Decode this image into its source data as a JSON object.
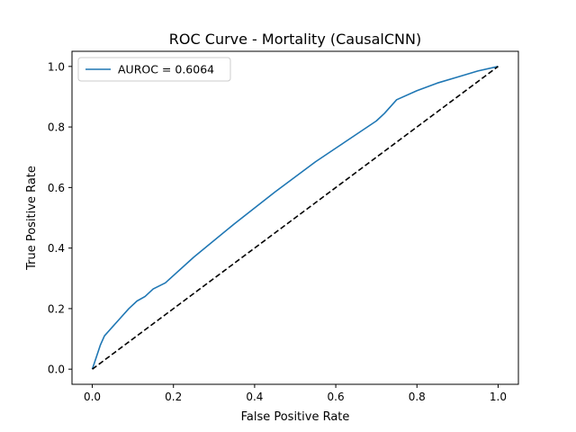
{
  "chart_data": {
    "type": "line",
    "title": "ROC Curve - Mortality (CausalCNN)",
    "xlabel": "False Positive Rate",
    "ylabel": "True Positive Rate",
    "xlim": [
      -0.05,
      1.05
    ],
    "ylim": [
      -0.05,
      1.05
    ],
    "x_ticks": [
      0.0,
      0.2,
      0.4,
      0.6,
      0.8,
      1.0
    ],
    "x_tick_labels": [
      "0.0",
      "0.2",
      "0.4",
      "0.6",
      "0.8",
      "1.0"
    ],
    "y_ticks": [
      0.0,
      0.2,
      0.4,
      0.6,
      0.8,
      1.0
    ],
    "y_tick_labels": [
      "0.0",
      "0.2",
      "0.4",
      "0.6",
      "0.8",
      "1.0"
    ],
    "grid": false,
    "legend_position": "top-left",
    "series": [
      {
        "name": "AUROC = 0.6064",
        "color": "#1f77b4",
        "style": "solid",
        "x": [
          0.0,
          0.005,
          0.01,
          0.015,
          0.02,
          0.03,
          0.04,
          0.05,
          0.07,
          0.09,
          0.11,
          0.13,
          0.15,
          0.18,
          0.25,
          0.35,
          0.45,
          0.55,
          0.6,
          0.65,
          0.7,
          0.72,
          0.75,
          0.8,
          0.85,
          0.9,
          0.95,
          1.0
        ],
        "y": [
          0.0,
          0.02,
          0.04,
          0.06,
          0.08,
          0.11,
          0.125,
          0.14,
          0.17,
          0.2,
          0.225,
          0.24,
          0.265,
          0.285,
          0.37,
          0.48,
          0.585,
          0.685,
          0.73,
          0.775,
          0.82,
          0.845,
          0.89,
          0.92,
          0.945,
          0.965,
          0.985,
          1.0
        ]
      },
      {
        "name": "",
        "color": "#000000",
        "style": "dashed",
        "x": [
          0.0,
          1.0
        ],
        "y": [
          0.0,
          1.0
        ]
      }
    ]
  }
}
